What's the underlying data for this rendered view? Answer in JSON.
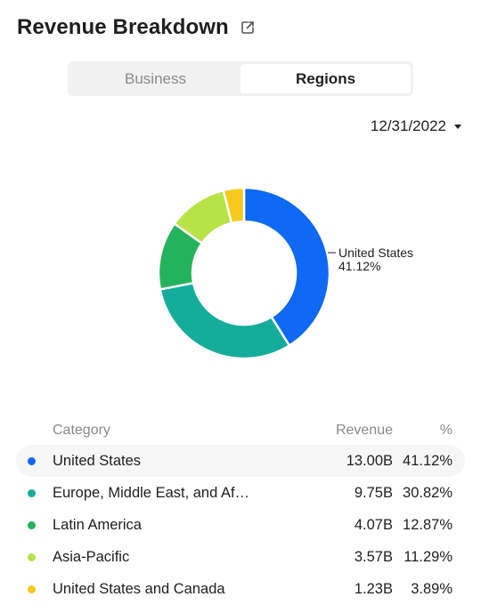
{
  "header": {
    "title": "Revenue Breakdown",
    "share_icon": "share-icon"
  },
  "tabs": [
    {
      "label": "Business",
      "active": false
    },
    {
      "label": "Regions",
      "active": true
    }
  ],
  "date_selector": {
    "value": "12/31/2022",
    "icon": "caret-down-icon"
  },
  "colors": {
    "United States": "#0f69f5",
    "Europe, Middle East, and Africa": "#14ad9c",
    "Latin America": "#22b35c",
    "Asia-Pacific": "#b8e346",
    "United States and Canada": "#f8c81c"
  },
  "table": {
    "headers": {
      "category": "Category",
      "revenue": "Revenue",
      "percent": "%"
    },
    "rows": [
      {
        "category": "United States",
        "display": "United States",
        "revenue": "13.00B",
        "percent": "41.12%"
      },
      {
        "category": "Europe, Middle East, and Africa",
        "display": "Europe, Middle East, and Af…",
        "revenue": "9.75B",
        "percent": "30.82%"
      },
      {
        "category": "Latin America",
        "display": "Latin America",
        "revenue": "4.07B",
        "percent": "12.87%"
      },
      {
        "category": "Asia-Pacific",
        "display": "Asia-Pacific",
        "revenue": "3.57B",
        "percent": "11.29%"
      },
      {
        "category": "United States and Canada",
        "display": "United States and Canada",
        "revenue": "1.23B",
        "percent": "3.89%"
      }
    ]
  },
  "chart_data": {
    "type": "pie",
    "variant": "donut",
    "categories": [
      "United States",
      "Europe, Middle East, and Africa",
      "Latin America",
      "Asia-Pacific",
      "United States and Canada"
    ],
    "values": [
      13.0,
      9.75,
      4.07,
      3.57,
      1.23
    ],
    "percents": [
      41.12,
      30.82,
      12.87,
      11.29,
      3.89
    ],
    "unit": "B",
    "annotation": {
      "category": "United States",
      "line1": "United States",
      "line2": "41.12%"
    }
  }
}
